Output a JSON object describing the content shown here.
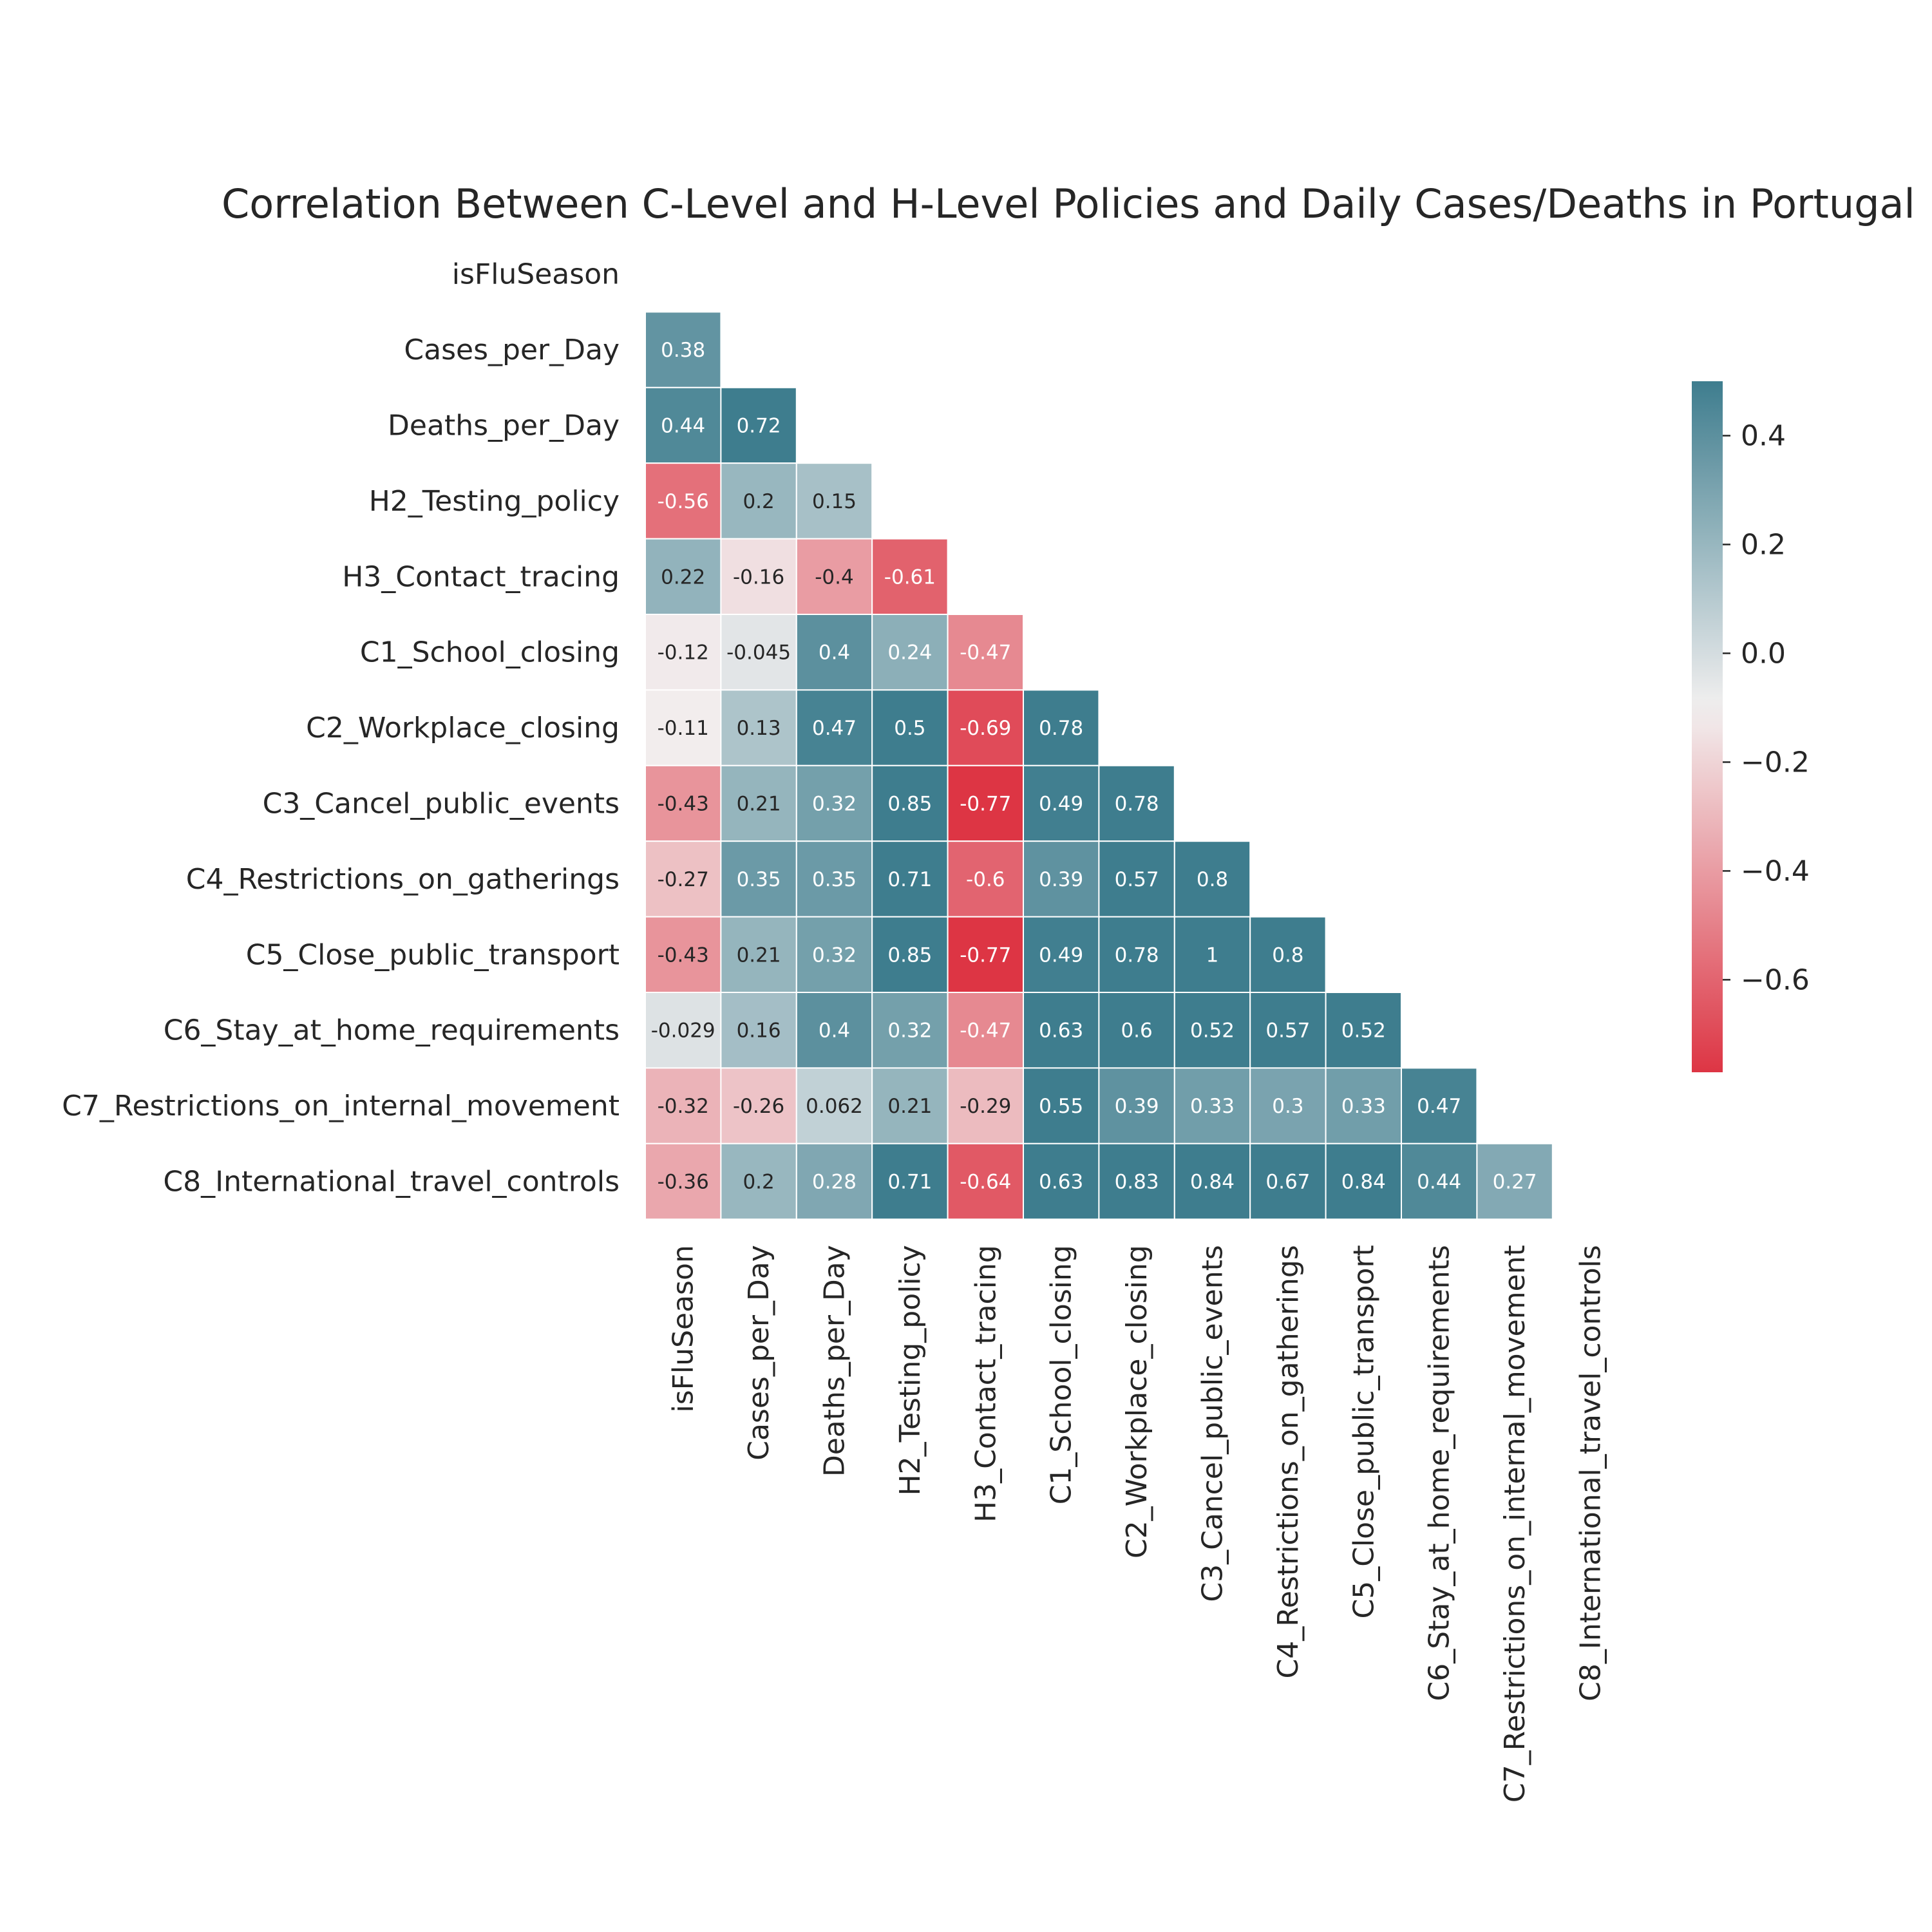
{
  "chart_data": {
    "type": "heatmap",
    "title": "Correlation Between C-Level and H-Level  Policies and Daily Cases/Deaths in Portugal",
    "mask": "upper-triangle-including-diagonal",
    "variables": [
      "isFluSeason",
      "Cases_per_Day",
      "Deaths_per_Day",
      "H2_Testing_policy",
      "H3_Contact_tracing",
      "C1_School_closing",
      "C2_Workplace_closing",
      "C3_Cancel_public_events",
      "C4_Restrictions_on_gatherings",
      "C5_Close_public_transport",
      "C6_Stay_at_home_requirements",
      "C7_Restrictions_on_internal_movement",
      "C8_International_travel_controls"
    ],
    "lower_triangle": [
      [],
      [
        "0.38"
      ],
      [
        "0.44",
        "0.72"
      ],
      [
        "-0.56",
        "0.2",
        "0.15"
      ],
      [
        "0.22",
        "-0.16",
        "-0.4",
        "-0.61"
      ],
      [
        "-0.12",
        "-0.045",
        "0.4",
        "0.24",
        "-0.47"
      ],
      [
        "-0.11",
        "0.13",
        "0.47",
        "0.5",
        "-0.69",
        "0.78"
      ],
      [
        "-0.43",
        "0.21",
        "0.32",
        "0.85",
        "-0.77",
        "0.49",
        "0.78"
      ],
      [
        "-0.27",
        "0.35",
        "0.35",
        "0.71",
        "-0.6",
        "0.39",
        "0.57",
        "0.8"
      ],
      [
        "-0.43",
        "0.21",
        "0.32",
        "0.85",
        "-0.77",
        "0.49",
        "0.78",
        "1",
        "0.8"
      ],
      [
        "-0.029",
        "0.16",
        "0.4",
        "0.32",
        "-0.47",
        "0.63",
        "0.6",
        "0.52",
        "0.57",
        "0.52"
      ],
      [
        "-0.32",
        "-0.26",
        "0.062",
        "0.21",
        "-0.29",
        "0.55",
        "0.39",
        "0.33",
        "0.3",
        "0.33",
        "0.47"
      ],
      [
        "-0.36",
        "0.2",
        "0.28",
        "0.71",
        "-0.64",
        "0.63",
        "0.83",
        "0.84",
        "0.67",
        "0.84",
        "0.44",
        "0.27"
      ]
    ],
    "colorbar": {
      "vmin": -0.77,
      "vmax": 0.5,
      "center": -0.1,
      "ticks": [
        "0.4",
        "0.2",
        "0.0",
        "−0.2",
        "−0.4",
        "−0.6"
      ],
      "tick_values": [
        0.4,
        0.2,
        0.0,
        -0.2,
        -0.4,
        -0.6
      ]
    },
    "colors": {
      "positive": "#3e7d8e",
      "neutral": "#f2f0f0",
      "negative": "#dd3544",
      "text_dark": "#262626",
      "text_light": "#ffffff",
      "grid": "#ffffff"
    }
  }
}
